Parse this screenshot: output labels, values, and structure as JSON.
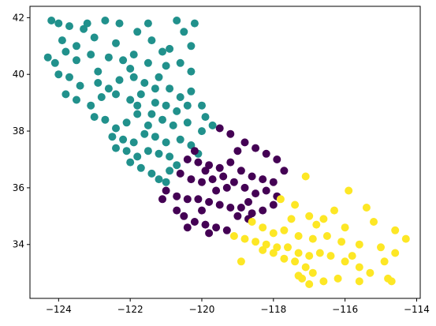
{
  "chart_data": {
    "type": "scatter",
    "title": "",
    "xlabel": "",
    "ylabel": "",
    "xlim": [
      -124.8,
      -113.9
    ],
    "ylim": [
      32.1,
      42.4
    ],
    "x_ticks": [
      -124,
      -122,
      -120,
      -118,
      -116,
      -114
    ],
    "y_ticks": [
      34,
      36,
      38,
      40,
      42
    ],
    "x_tick_labels": [
      "−124",
      "−122",
      "−120",
      "−118",
      "−116",
      "−114"
    ],
    "y_tick_labels": [
      "34",
      "36",
      "38",
      "40",
      "42"
    ],
    "grid": false,
    "legend": false,
    "series": [
      {
        "color": "#21918c",
        "points": [
          [
            -124.2,
            41.9
          ],
          [
            -124.0,
            41.8
          ],
          [
            -123.7,
            41.7
          ],
          [
            -123.2,
            41.8
          ],
          [
            -122.7,
            41.9
          ],
          [
            -122.3,
            41.8
          ],
          [
            -121.5,
            41.8
          ],
          [
            -120.7,
            41.9
          ],
          [
            -120.2,
            41.8
          ],
          [
            -121.8,
            41.5
          ],
          [
            -123.9,
            41.2
          ],
          [
            -123.5,
            41.0
          ],
          [
            -123.0,
            41.3
          ],
          [
            -122.4,
            41.1
          ],
          [
            -121.4,
            41.2
          ],
          [
            -120.5,
            41.5
          ],
          [
            -120.3,
            41.0
          ],
          [
            -124.3,
            40.6
          ],
          [
            -124.1,
            40.4
          ],
          [
            -123.8,
            40.8
          ],
          [
            -123.5,
            40.5
          ],
          [
            -123.1,
            40.7
          ],
          [
            -122.6,
            40.6
          ],
          [
            -122.2,
            40.5
          ],
          [
            -121.9,
            40.7
          ],
          [
            -121.5,
            40.4
          ],
          [
            -121.0,
            40.3
          ],
          [
            -120.6,
            40.4
          ],
          [
            -120.3,
            40.1
          ],
          [
            -124.0,
            40.0
          ],
          [
            -123.7,
            39.9
          ],
          [
            -123.4,
            39.6
          ],
          [
            -122.9,
            39.7
          ],
          [
            -122.3,
            39.8
          ],
          [
            -121.9,
            39.9
          ],
          [
            -121.6,
            39.7
          ],
          [
            -121.2,
            39.9
          ],
          [
            -120.9,
            39.5
          ],
          [
            -120.6,
            39.2
          ],
          [
            -120.3,
            39.4
          ],
          [
            -123.8,
            39.3
          ],
          [
            -123.5,
            39.1
          ],
          [
            -123.1,
            38.9
          ],
          [
            -122.8,
            39.2
          ],
          [
            -122.4,
            39.3
          ],
          [
            -122.0,
            39.1
          ],
          [
            -121.7,
            39.3
          ],
          [
            -121.3,
            39.0
          ],
          [
            -121.0,
            38.9
          ],
          [
            -120.7,
            38.7
          ],
          [
            -120.4,
            38.9
          ],
          [
            -120.0,
            38.9
          ],
          [
            -123.0,
            38.5
          ],
          [
            -122.7,
            38.4
          ],
          [
            -122.4,
            38.1
          ],
          [
            -122.1,
            38.3
          ],
          [
            -121.8,
            38.6
          ],
          [
            -121.4,
            38.6
          ],
          [
            -121.1,
            38.4
          ],
          [
            -120.8,
            38.2
          ],
          [
            -120.4,
            38.3
          ],
          [
            -120.0,
            38.0
          ],
          [
            -119.7,
            38.2
          ],
          [
            -122.5,
            37.8
          ],
          [
            -122.2,
            37.7
          ],
          [
            -121.9,
            37.6
          ],
          [
            -121.6,
            37.9
          ],
          [
            -121.3,
            37.8
          ],
          [
            -121.0,
            37.6
          ],
          [
            -120.6,
            37.7
          ],
          [
            -120.3,
            37.5
          ],
          [
            -120.1,
            37.2
          ],
          [
            -122.4,
            37.4
          ],
          [
            -122.1,
            37.3
          ],
          [
            -121.8,
            37.1
          ],
          [
            -121.5,
            37.3
          ],
          [
            -121.2,
            37.2
          ],
          [
            -120.9,
            37.1
          ],
          [
            -122.0,
            36.9
          ],
          [
            -121.7,
            36.7
          ],
          [
            -121.4,
            36.5
          ],
          [
            -121.2,
            36.3
          ],
          [
            -120.9,
            36.6
          ],
          [
            -121.8,
            38.9
          ],
          [
            -121.5,
            38.2
          ],
          [
            -122.9,
            40.1
          ],
          [
            -122.6,
            39.5
          ],
          [
            -121.3,
            39.5
          ],
          [
            -123.3,
            41.6
          ],
          [
            -121.1,
            40.8
          ],
          [
            -119.9,
            38.5
          ],
          [
            -120.7,
            36.8
          ],
          [
            -121.0,
            36.2
          ],
          [
            -122.0,
            40.2
          ],
          [
            -120.9,
            40.9
          ]
        ]
      },
      {
        "color": "#440154",
        "points": [
          [
            -119.5,
            38.1
          ],
          [
            -119.2,
            37.9
          ],
          [
            -118.8,
            37.6
          ],
          [
            -118.5,
            37.4
          ],
          [
            -118.2,
            37.2
          ],
          [
            -117.9,
            37.0
          ],
          [
            -117.7,
            36.6
          ],
          [
            -120.4,
            37.0
          ],
          [
            -120.1,
            36.9
          ],
          [
            -119.8,
            36.8
          ],
          [
            -119.5,
            36.7
          ],
          [
            -119.2,
            36.9
          ],
          [
            -118.9,
            36.6
          ],
          [
            -118.6,
            36.4
          ],
          [
            -118.3,
            36.3
          ],
          [
            -118.0,
            36.2
          ],
          [
            -120.6,
            36.5
          ],
          [
            -120.3,
            36.3
          ],
          [
            -120.0,
            36.2
          ],
          [
            -119.7,
            36.3
          ],
          [
            -119.4,
            36.4
          ],
          [
            -119.1,
            36.2
          ],
          [
            -118.8,
            36.0
          ],
          [
            -118.5,
            35.8
          ],
          [
            -118.2,
            35.9
          ],
          [
            -117.9,
            35.7
          ],
          [
            -121.0,
            35.9
          ],
          [
            -120.7,
            35.7
          ],
          [
            -120.4,
            35.6
          ],
          [
            -120.1,
            35.6
          ],
          [
            -119.8,
            35.5
          ],
          [
            -119.5,
            35.4
          ],
          [
            -119.2,
            35.3
          ],
          [
            -118.9,
            35.3
          ],
          [
            -118.6,
            35.1
          ],
          [
            -118.3,
            35.2
          ],
          [
            -120.7,
            35.2
          ],
          [
            -120.5,
            35.0
          ],
          [
            -120.2,
            34.8
          ],
          [
            -119.9,
            34.7
          ],
          [
            -119.6,
            34.6
          ],
          [
            -119.3,
            34.5
          ],
          [
            -119.8,
            34.4
          ],
          [
            -120.4,
            34.6
          ],
          [
            -119.0,
            35.0
          ],
          [
            -118.7,
            34.9
          ],
          [
            -119.6,
            35.9
          ],
          [
            -119.9,
            36.6
          ],
          [
            -120.2,
            37.3
          ],
          [
            -119.0,
            37.3
          ],
          [
            -118.7,
            35.5
          ],
          [
            -118.0,
            35.4
          ],
          [
            -119.3,
            36.0
          ],
          [
            -120.0,
            35.2
          ],
          [
            -121.1,
            35.6
          ]
        ]
      },
      {
        "color": "#fde725",
        "points": [
          [
            -117.8,
            35.6
          ],
          [
            -117.4,
            35.4
          ],
          [
            -117.0,
            35.0
          ],
          [
            -116.6,
            34.9
          ],
          [
            -116.0,
            34.6
          ],
          [
            -115.2,
            34.8
          ],
          [
            -114.6,
            34.5
          ],
          [
            -118.6,
            34.8
          ],
          [
            -118.3,
            34.6
          ],
          [
            -118.0,
            34.4
          ],
          [
            -117.7,
            34.5
          ],
          [
            -117.3,
            34.3
          ],
          [
            -116.9,
            34.2
          ],
          [
            -116.5,
            34.3
          ],
          [
            -116.1,
            34.1
          ],
          [
            -115.6,
            34.0
          ],
          [
            -115.0,
            33.9
          ],
          [
            -114.6,
            33.7
          ],
          [
            -119.1,
            34.3
          ],
          [
            -118.8,
            34.2
          ],
          [
            -118.5,
            34.1
          ],
          [
            -118.2,
            34.0
          ],
          [
            -117.9,
            33.9
          ],
          [
            -117.6,
            33.9
          ],
          [
            -117.3,
            33.7
          ],
          [
            -117.0,
            33.6
          ],
          [
            -116.7,
            33.7
          ],
          [
            -116.4,
            33.6
          ],
          [
            -116.0,
            33.4
          ],
          [
            -115.6,
            33.2
          ],
          [
            -115.3,
            33.0
          ],
          [
            -114.8,
            32.8
          ],
          [
            -118.3,
            33.8
          ],
          [
            -118.0,
            33.7
          ],
          [
            -117.7,
            33.5
          ],
          [
            -117.4,
            33.4
          ],
          [
            -117.1,
            33.2
          ],
          [
            -116.9,
            33.0
          ],
          [
            -117.2,
            32.8
          ],
          [
            -117.0,
            32.6
          ],
          [
            -116.6,
            32.7
          ],
          [
            -116.2,
            32.8
          ],
          [
            -115.6,
            32.7
          ],
          [
            -114.7,
            32.7
          ],
          [
            -114.9,
            33.4
          ],
          [
            -117.1,
            36.4
          ],
          [
            -115.9,
            35.9
          ],
          [
            -115.4,
            35.3
          ],
          [
            -114.3,
            34.2
          ],
          [
            -118.9,
            33.4
          ],
          [
            -117.5,
            34.9
          ],
          [
            -116.3,
            35.2
          ],
          [
            -117.3,
            32.9
          ],
          [
            -115.8,
            33.6
          ],
          [
            -116.8,
            34.7
          ]
        ]
      }
    ]
  }
}
